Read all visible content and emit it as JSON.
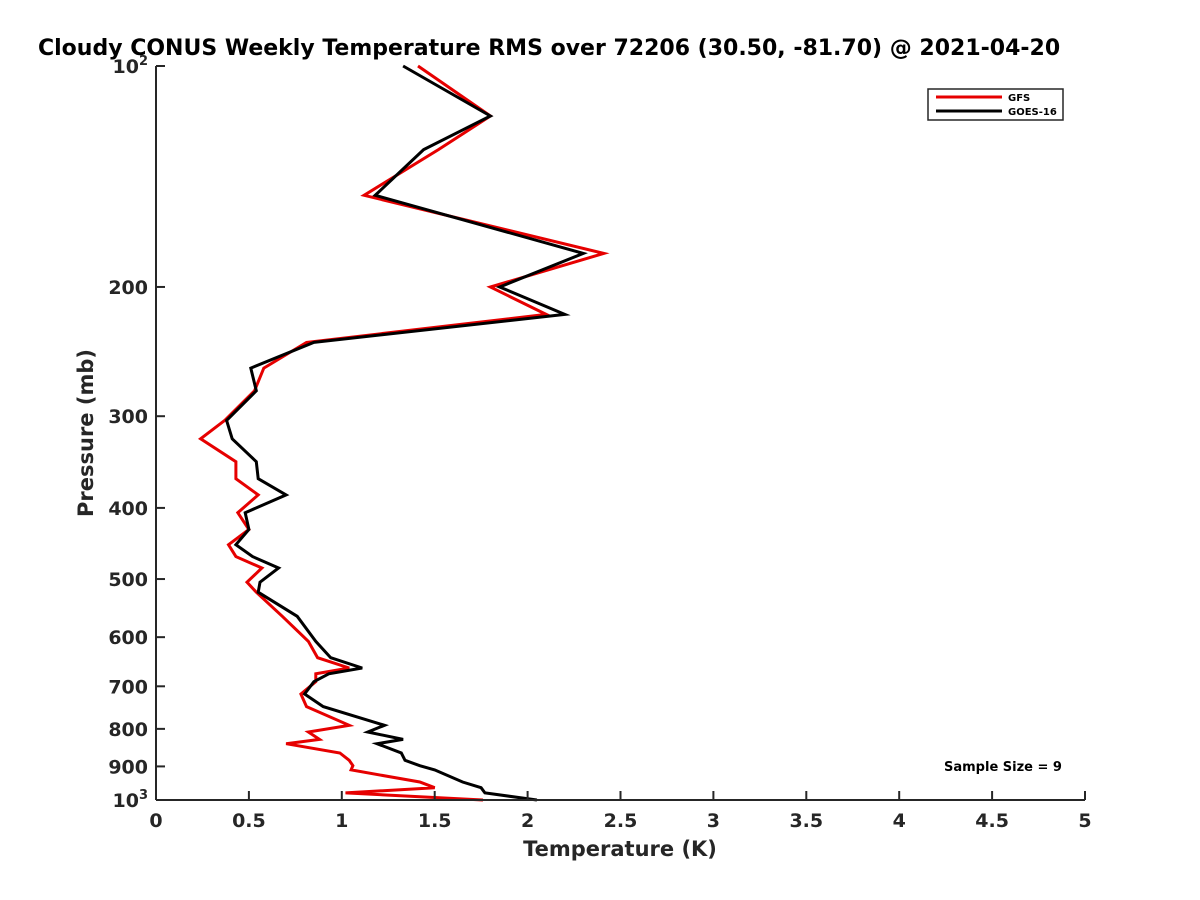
{
  "chart_data": {
    "type": "line",
    "title": "Cloudy CONUS Weekly Temperature RMS over 72206 (30.50, -81.70) @ 2021-04-20",
    "xlabel": "Temperature (K)",
    "ylabel": "Pressure (mb)",
    "xlim": [
      0,
      5
    ],
    "ylim": [
      1000,
      100
    ],
    "y_scale": "log",
    "y_reversed": true,
    "grid": false,
    "legend_position": "top-right",
    "x_ticks": [
      {
        "value": 0,
        "label": "0"
      },
      {
        "value": 0.5,
        "label": "0.5"
      },
      {
        "value": 1,
        "label": "1"
      },
      {
        "value": 1.5,
        "label": "1.5"
      },
      {
        "value": 2,
        "label": "2"
      },
      {
        "value": 2.5,
        "label": "2.5"
      },
      {
        "value": 3,
        "label": "3"
      },
      {
        "value": 3.5,
        "label": "3.5"
      },
      {
        "value": 4,
        "label": "4"
      },
      {
        "value": 4.5,
        "label": "4.5"
      },
      {
        "value": 5,
        "label": "5"
      }
    ],
    "y_ticks": [
      {
        "value": 100,
        "base": "10",
        "exp": "2"
      },
      {
        "value": 200,
        "base": "200",
        "exp": ""
      },
      {
        "value": 300,
        "base": "300",
        "exp": ""
      },
      {
        "value": 400,
        "base": "400",
        "exp": ""
      },
      {
        "value": 500,
        "base": "500",
        "exp": ""
      },
      {
        "value": 600,
        "base": "600",
        "exp": ""
      },
      {
        "value": 700,
        "base": "700",
        "exp": ""
      },
      {
        "value": 800,
        "base": "800",
        "exp": ""
      },
      {
        "value": 900,
        "base": "900",
        "exp": ""
      },
      {
        "value": 1000,
        "base": "10",
        "exp": "3"
      }
    ],
    "series": [
      {
        "name": "GFS",
        "color": "#e60000",
        "points": [
          [
            1.41,
            100
          ],
          [
            1.8,
            117
          ],
          [
            1.52,
            130
          ],
          [
            1.12,
            150
          ],
          [
            2.41,
            180
          ],
          [
            1.8,
            200
          ],
          [
            2.1,
            218
          ],
          [
            0.81,
            238
          ],
          [
            0.58,
            258
          ],
          [
            0.53,
            277
          ],
          [
            0.37,
            304
          ],
          [
            0.24,
            322
          ],
          [
            0.43,
            346
          ],
          [
            0.43,
            365
          ],
          [
            0.55,
            384
          ],
          [
            0.44,
            406
          ],
          [
            0.5,
            428
          ],
          [
            0.39,
            449
          ],
          [
            0.43,
            466
          ],
          [
            0.57,
            483
          ],
          [
            0.49,
            505
          ],
          [
            0.54,
            521
          ],
          [
            0.68,
            562
          ],
          [
            0.82,
            608
          ],
          [
            0.87,
            640
          ],
          [
            1.04,
            661
          ],
          [
            0.86,
            673
          ],
          [
            0.86,
            690
          ],
          [
            0.78,
            717
          ],
          [
            0.81,
            746
          ],
          [
            1.04,
            791
          ],
          [
            0.82,
            808
          ],
          [
            0.88,
            827
          ],
          [
            0.7,
            838
          ],
          [
            0.99,
            863
          ],
          [
            1.04,
            883
          ],
          [
            1.06,
            898
          ],
          [
            1.05,
            910
          ],
          [
            1.42,
            945
          ],
          [
            1.5,
            962
          ],
          [
            1.02,
            978
          ],
          [
            1.76,
            1000
          ]
        ]
      },
      {
        "name": "GOES-16",
        "color": "#000000",
        "points": [
          [
            1.33,
            100
          ],
          [
            1.8,
            117
          ],
          [
            1.44,
            130
          ],
          [
            1.18,
            150
          ],
          [
            2.3,
            180
          ],
          [
            1.85,
            200
          ],
          [
            2.2,
            218
          ],
          [
            0.85,
            238
          ],
          [
            0.51,
            258
          ],
          [
            0.54,
            277
          ],
          [
            0.38,
            304
          ],
          [
            0.41,
            322
          ],
          [
            0.54,
            346
          ],
          [
            0.55,
            365
          ],
          [
            0.7,
            384
          ],
          [
            0.48,
            406
          ],
          [
            0.5,
            428
          ],
          [
            0.43,
            449
          ],
          [
            0.52,
            466
          ],
          [
            0.66,
            483
          ],
          [
            0.56,
            505
          ],
          [
            0.55,
            521
          ],
          [
            0.76,
            562
          ],
          [
            0.86,
            608
          ],
          [
            0.94,
            640
          ],
          [
            1.11,
            661
          ],
          [
            0.93,
            673
          ],
          [
            0.85,
            690
          ],
          [
            0.8,
            717
          ],
          [
            0.9,
            746
          ],
          [
            1.23,
            791
          ],
          [
            1.14,
            808
          ],
          [
            1.33,
            827
          ],
          [
            1.19,
            838
          ],
          [
            1.32,
            863
          ],
          [
            1.34,
            883
          ],
          [
            1.42,
            898
          ],
          [
            1.5,
            910
          ],
          [
            1.65,
            945
          ],
          [
            1.75,
            962
          ],
          [
            1.77,
            978
          ],
          [
            2.05,
            1000
          ]
        ]
      }
    ],
    "annotations": [
      {
        "text": "Sample Size = 9"
      }
    ]
  }
}
